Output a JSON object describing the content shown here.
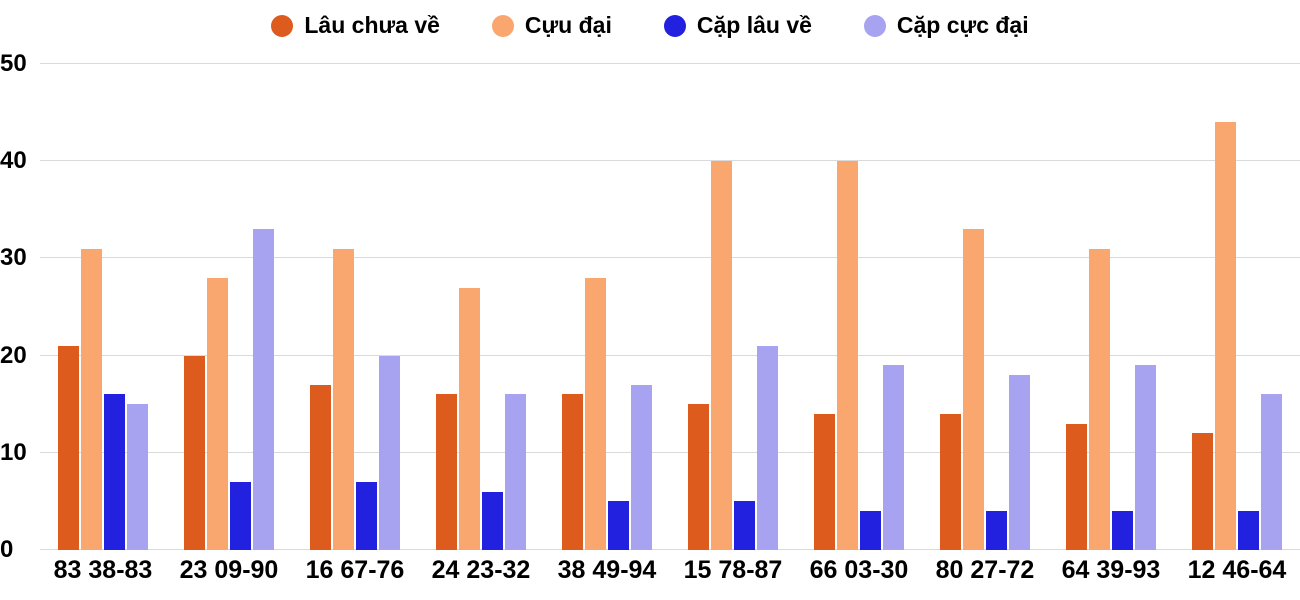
{
  "chart_data": {
    "type": "bar",
    "title": "",
    "categories": [
      "83 38-83",
      "23 09-90",
      "16 67-76",
      "24 23-32",
      "38 49-94",
      "15 78-87",
      "66 03-30",
      "80 27-72",
      "64 39-93",
      "12 46-64"
    ],
    "series": [
      {
        "name": "Lâu chưa về",
        "color": "#DC5B1D",
        "values": [
          21,
          20,
          17,
          16,
          16,
          15,
          14,
          14,
          13,
          12
        ]
      },
      {
        "name": "Cựu đại",
        "color": "#F9A76F",
        "values": [
          31,
          28,
          31,
          27,
          28,
          40,
          40,
          33,
          31,
          44
        ]
      },
      {
        "name": "Cặp lâu về",
        "color": "#2121DF",
        "values": [
          16,
          7,
          7,
          6,
          5,
          5,
          4,
          4,
          4,
          4
        ]
      },
      {
        "name": "Cặp cực đại",
        "color": "#A7A3F0",
        "values": [
          15,
          33,
          20,
          16,
          17,
          21,
          19,
          18,
          19,
          16
        ]
      }
    ],
    "y_ticks": [
      0,
      10,
      20,
      30,
      40,
      50
    ],
    "ylim": [
      0,
      50
    ],
    "legend_position": "top",
    "grid": true,
    "xlabel": "",
    "ylabel": ""
  },
  "colors": {
    "grid": "#dadada",
    "text": "#000000",
    "background": "#ffffff"
  }
}
